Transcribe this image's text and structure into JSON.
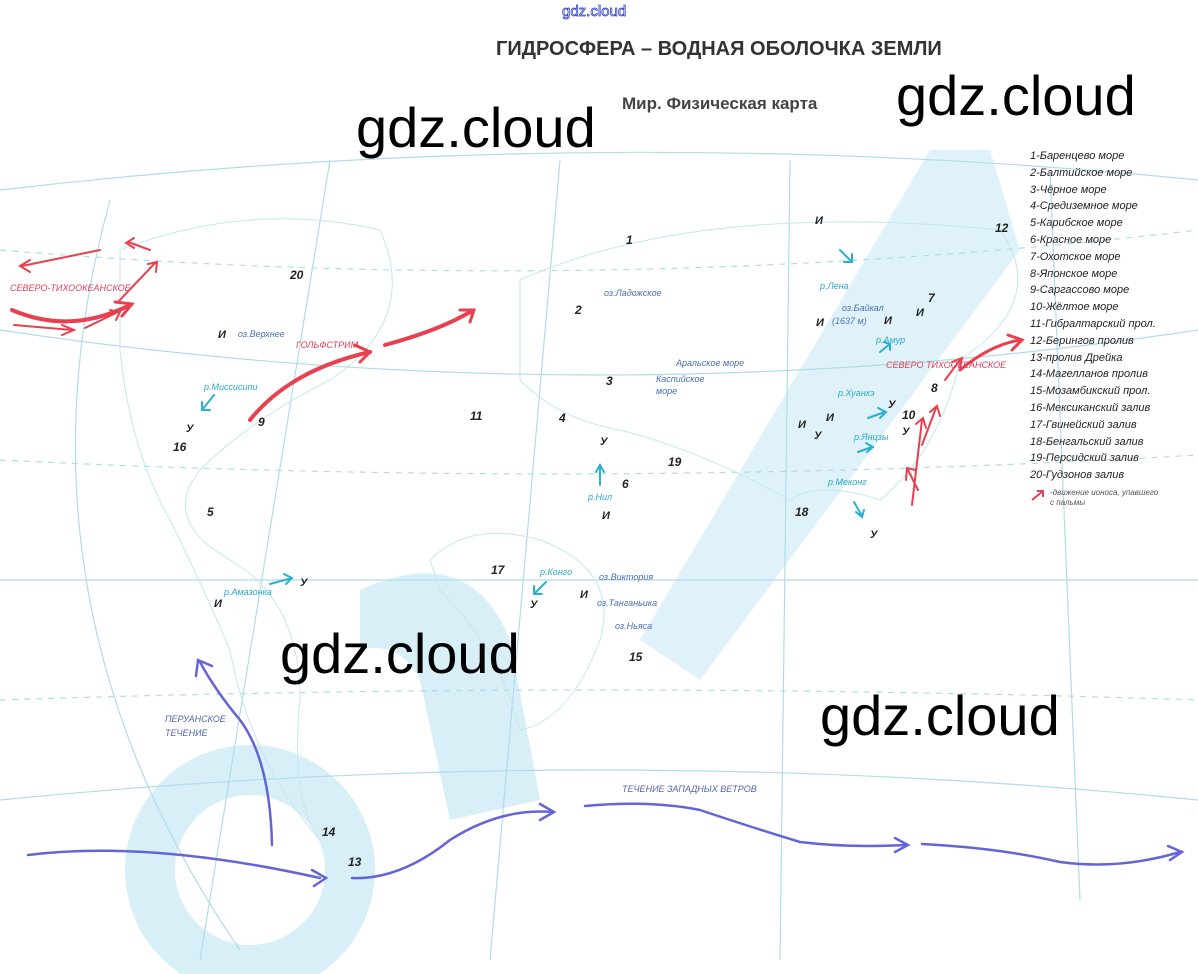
{
  "watermark_top": "gdz.cloud",
  "title": "ГИДРОСФЕРА – ВОДНАЯ ОБОЛОЧКА ЗЕМЛИ",
  "subtitle": "Мир. Физическая карта",
  "watermarks": [
    "gdz.cloud",
    "gdz.cloud",
    "gdz.cloud",
    "gdz.cloud"
  ],
  "legend": {
    "items": [
      "1-Баренцево море",
      "2-Балтийское море",
      "3-Чёрное море",
      "4-Средиземное море",
      "5-Карибское море",
      "6-Красное море",
      "7-Охотское море",
      "8-Японское море",
      "9-Саргассово море",
      "10-Жёлтое море",
      "11-Гибралтарский прол.",
      "12-Берингов пролив",
      "13-пролив Дрейка",
      "14-Магелланов пролив",
      "15-Мозамбикский прол.",
      "16-Мексиканский залив",
      "17-Гвинейский залив",
      "18-Бенгальский залив",
      "19-Персидский залив",
      "20-Гудзонов залив"
    ],
    "arrow_text": "-движение ионоса, упавшего с пальмы",
    "arrow_color": "#e0405a"
  },
  "numbers": [
    "1",
    "2",
    "3",
    "4",
    "5",
    "6",
    "7",
    "8",
    "9",
    "10",
    "11",
    "12",
    "13",
    "14",
    "15",
    "16",
    "17",
    "18",
    "19",
    "20"
  ],
  "places": [
    "оз.Верхнее",
    "оз.Ладожское",
    "Аральское море",
    "Каспийское",
    "море",
    "оз.Байкал",
    "(1637 м)",
    "оз.Виктория",
    "оз.Танганьика",
    "оз.Ньяса"
  ],
  "rivers": [
    "р.Миссисипи",
    "р.Амазонка",
    "р.Нил",
    "р.Конго",
    "р.Лена",
    "р.Амур",
    "р.Хуанхэ",
    "р.Янцзы",
    "р.Меконг"
  ],
  "currents_red": [
    "СЕВЕРО-ТИХООКЕАНСКОЕ",
    "ГОЛЬФСТРИМ",
    "СЕВЕРО ТИХООКЕАНСКОЕ"
  ],
  "currents_blue": [
    "ПЕРУАНСКОЕ",
    "ТЕЧЕНИЕ",
    "ТЕЧЕНИЕ ЗАПАДНЫХ ВЕТРОВ"
  ],
  "marks": [
    "И",
    "У",
    "И",
    "У",
    "У",
    "И",
    "И",
    "У",
    "И",
    "И",
    "И",
    "У",
    "И",
    "И",
    "И",
    "У",
    "У",
    "У"
  ],
  "colors": {
    "warm_current": "#e8404f",
    "cold_current": "#6464d8",
    "river_arrow": "#2ab0d0",
    "grid": "#a8d8e8",
    "logo": "#d4eef8"
  }
}
